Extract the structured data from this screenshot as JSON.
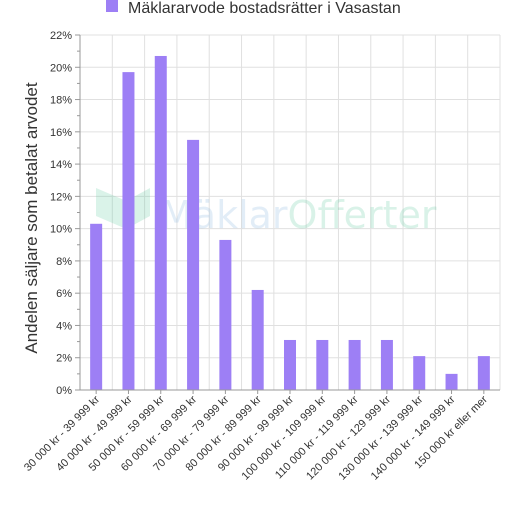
{
  "chart_data": {
    "type": "bar",
    "title": "",
    "xlabel": "",
    "ylabel": "Andelen säljare som betalat arvodet",
    "legend": {
      "position": "top",
      "entries": [
        "Mäklararvode bostadsrätter i Vasastan"
      ]
    },
    "categories": [
      "30 000 kr - 39 999 kr",
      "40 000 kr - 49 999 kr",
      "50 000 kr - 59 999 kr",
      "60 000 kr - 69 999 kr",
      "70 000 kr - 79 999 kr",
      "80 000 kr - 89 999 kr",
      "90 000 kr - 99 999 kr",
      "100 000 kr - 109 999 kr",
      "110 000 kr - 119 999 kr",
      "120 000 kr - 129 999 kr",
      "130 000 kr - 139 999 kr",
      "140 000 kr - 149 999 kr",
      "150 000 kr eller mer"
    ],
    "series": [
      {
        "name": "Mäklararvode bostadsrätter i Vasastan",
        "values": [
          10.3,
          19.7,
          20.7,
          15.5,
          9.3,
          6.2,
          3.1,
          3.1,
          3.1,
          3.1,
          2.1,
          1.0,
          2.1
        ]
      }
    ],
    "ylim": [
      0,
      22
    ],
    "yticks": [
      "0%",
      "2%",
      "4%",
      "6%",
      "8%",
      "10%",
      "12%",
      "14%",
      "16%",
      "18%",
      "20%",
      "22%"
    ],
    "grid": true,
    "colors": {
      "bar": "#9d7ff5",
      "grid": "#e0e0e0",
      "axis": "#999999"
    }
  },
  "watermark": {
    "text_part1": "Mäklar",
    "text_part2": "Offerter"
  }
}
